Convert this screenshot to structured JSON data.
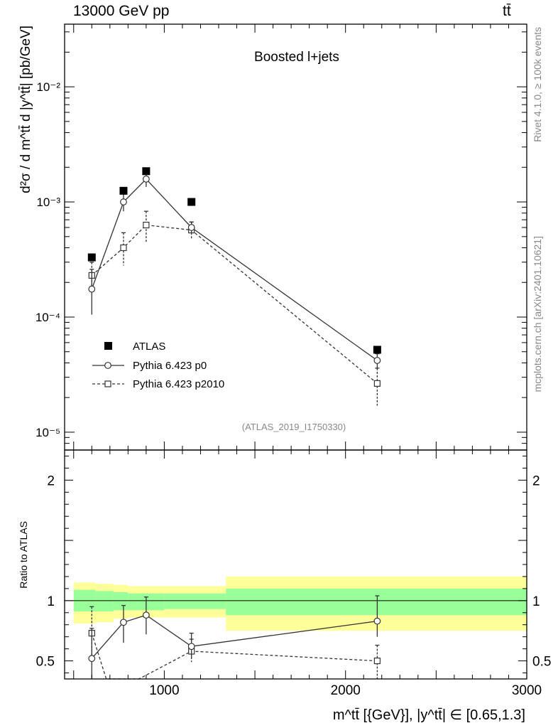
{
  "header": {
    "left": "13000 GeV pp",
    "right": "tt̄"
  },
  "side_labels": {
    "top": "Rivet 4.1.0, ≥ 100k events",
    "bottom": "mcplots.cern.ch [arXiv:2401.10621]"
  },
  "colors": {
    "band_inner": "#99ff99",
    "band_outer": "#ffff99",
    "data": "#000000",
    "mc1": "#333333",
    "mc2": "#333333",
    "ref_label": "#888888"
  },
  "chart_data": [
    {
      "type": "line",
      "title": "Boosted l+jets",
      "ylabel": "d²σ / d m^tt̄ d |y^tt̄| [pb/GeV]",
      "yscale": "log",
      "ylim": [
        7e-06,
        0.035
      ],
      "xlim": [
        450,
        3000
      ],
      "ytick_labels": [
        "10⁻⁵",
        "10⁻⁴",
        "10⁻³",
        "10⁻²"
      ],
      "annotation": "(ATLAS_2019_I1750330)",
      "legend": [
        "ATLAS",
        "Pythia 6.423 p0",
        "Pythia 6.423 p2010"
      ],
      "legend_position": "middle-left",
      "series": [
        {
          "name": "ATLAS",
          "style": "filled-square",
          "x": [
            600,
            775,
            900,
            1150,
            2175
          ],
          "y": [
            0.00033,
            0.00125,
            0.00185,
            0.001,
            5.2e-05
          ]
        },
        {
          "name": "Pythia 6.423 p0",
          "style": "open-circle-solid",
          "x": [
            600,
            775,
            900,
            1150,
            2175
          ],
          "y": [
            0.000175,
            0.001,
            0.00158,
            0.0006,
            4.2e-05
          ],
          "err_lo": [
            0.000105,
            0.00083,
            0.00135,
            0.00054,
            3.6e-05
          ],
          "err_hi": [
            0.00026,
            0.00118,
            0.00182,
            0.00067,
            4.8e-05
          ]
        },
        {
          "name": "Pythia 6.423 p2010",
          "style": "open-square-dashed",
          "x": [
            600,
            775,
            900,
            1150,
            2175
          ],
          "y": [
            0.00023,
            0.0004,
            0.00063,
            0.00057,
            2.65e-05
          ],
          "err_lo": [
            0.00018,
            0.00028,
            0.00044,
            0.00048,
            1.7e-05
          ],
          "err_hi": [
            0.0003,
            0.00054,
            0.00083,
            0.00067,
            3.6e-05
          ]
        }
      ]
    },
    {
      "type": "line",
      "title": "",
      "xlabel": "m^tt̄ [{GeV}], |y^tt̄| ∈ [0.65,1.3]",
      "ylabel": "Ratio to ATLAS",
      "xlim": [
        450,
        3000
      ],
      "ylim": [
        0.35,
        2.25
      ],
      "xtick_labels": [
        "1000",
        "2000",
        "3000"
      ],
      "ytick_labels": [
        "0.5",
        "1",
        "2"
      ],
      "bands": [
        {
          "x0": 500,
          "x1": 620,
          "inner": [
            0.91,
            1.09
          ],
          "outer": [
            0.81,
            1.15
          ]
        },
        {
          "x0": 620,
          "x1": 720,
          "inner": [
            0.91,
            1.08
          ],
          "outer": [
            0.82,
            1.14
          ]
        },
        {
          "x0": 720,
          "x1": 800,
          "inner": [
            0.92,
            1.07
          ],
          "outer": [
            0.85,
            1.13
          ]
        },
        {
          "x0": 800,
          "x1": 1000,
          "inner": [
            0.92,
            1.06
          ],
          "outer": [
            0.86,
            1.12
          ]
        },
        {
          "x0": 1000,
          "x1": 1340,
          "inner": [
            0.93,
            1.06
          ],
          "outer": [
            0.86,
            1.12
          ]
        },
        {
          "x0": 1340,
          "x1": 3000,
          "inner": [
            0.88,
            1.1
          ],
          "outer": [
            0.75,
            1.2
          ]
        }
      ],
      "series": [
        {
          "name": "Pythia 6.423 p0",
          "style": "open-circle-solid",
          "x": [
            600,
            775,
            900,
            1150,
            2175
          ],
          "y": [
            0.52,
            0.82,
            0.88,
            0.62,
            0.83
          ],
          "err_lo": [
            0.32,
            0.65,
            0.72,
            0.52,
            0.7
          ],
          "err_hi": [
            0.77,
            0.96,
            1.03,
            0.73,
            1.04
          ]
        },
        {
          "name": "Pythia 6.423 p2010",
          "style": "open-square-dashed",
          "x": [
            600,
            680,
            860,
            1150,
            2175
          ],
          "y": [
            0.73,
            0.35,
            0.35,
            0.58,
            0.5
          ],
          "err_lo": [
            0.55,
            null,
            null,
            0.49,
            0.33
          ],
          "err_hi": [
            0.95,
            null,
            null,
            0.68,
            0.63
          ],
          "draw_marker": [
            true,
            false,
            false,
            true,
            true
          ]
        }
      ]
    }
  ]
}
